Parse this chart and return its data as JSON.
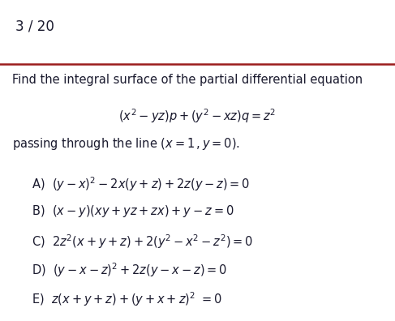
{
  "page_number": "3 / 20",
  "line_color": "#9b1c1c",
  "background_color": "#ffffff",
  "text_color": "#1a1a2e",
  "page_num_fontsize": 12,
  "body_fontsize": 10.5,
  "math_fontsize": 10.5,
  "figwidth": 4.87,
  "figheight": 3.96,
  "dpi": 100
}
